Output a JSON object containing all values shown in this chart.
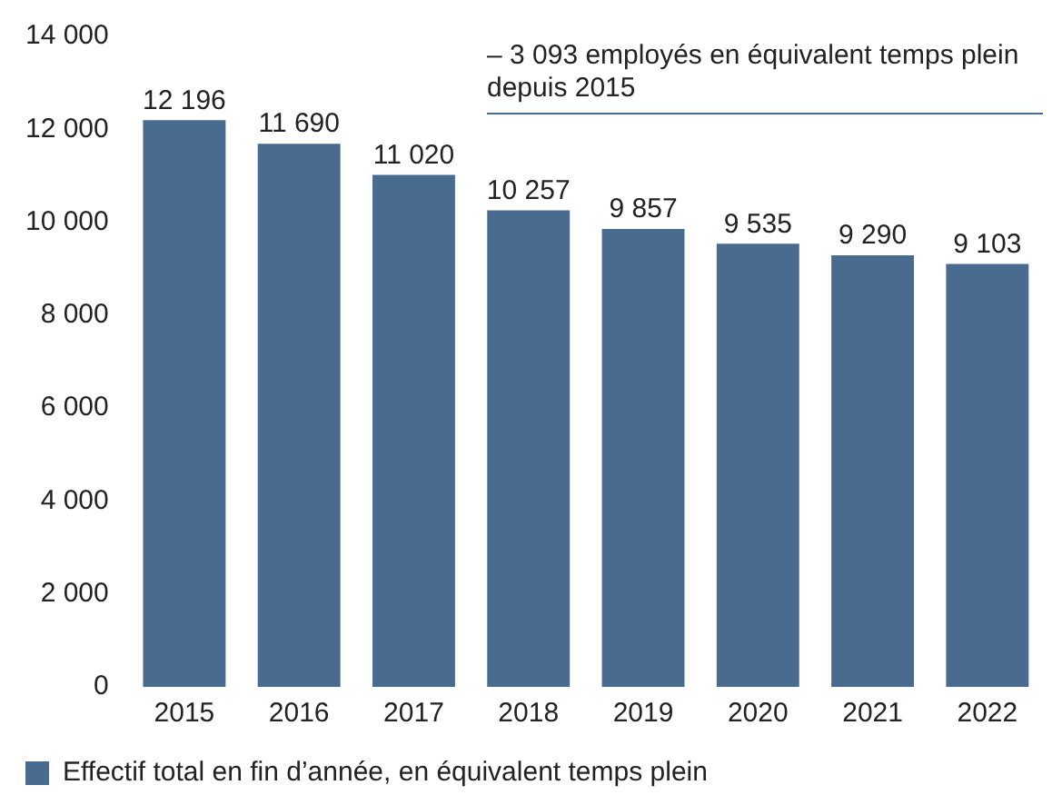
{
  "chart_data": {
    "type": "bar",
    "categories": [
      "2015",
      "2016",
      "2017",
      "2018",
      "2019",
      "2020",
      "2021",
      "2022"
    ],
    "series": [
      {
        "name": "Effectif total en fin d’année, en équivalent temps plein",
        "color": "#4a6b90",
        "values": [
          12196,
          11690,
          11020,
          10257,
          9857,
          9535,
          9290,
          9103
        ],
        "value_labels": [
          "12 196",
          "11 690",
          "11 020",
          "10 257",
          "9 857",
          "9 535",
          "9 290",
          "9 103"
        ]
      }
    ],
    "ylim": [
      0,
      14000
    ],
    "yticks": [
      0,
      {
        "value": 2000,
        "label": "2 000"
      },
      {
        "value": 4000,
        "label": "4 000"
      },
      {
        "value": 6000,
        "label": "6 000"
      },
      {
        "value": 8000,
        "label": "8 000"
      },
      {
        "value": 10000,
        "label": "10 000"
      },
      {
        "value": 12000,
        "label": "12 000"
      },
      {
        "value": 14000,
        "label": "14 000"
      }
    ],
    "grid": false,
    "legend": "bottom",
    "annotations": [
      "– 3 093 employés en équivalent temps plein depuis 2015"
    ]
  }
}
